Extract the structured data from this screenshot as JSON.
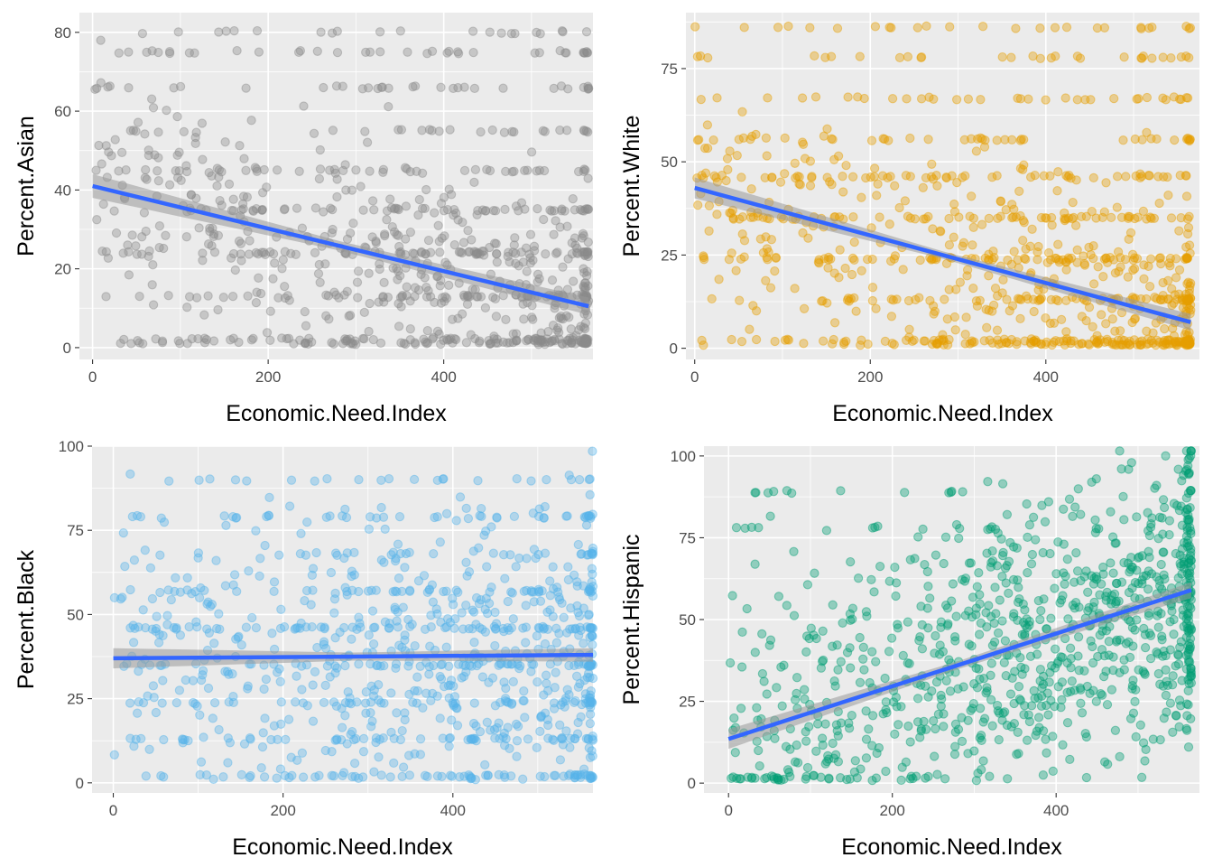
{
  "colors": {
    "panel": "#ebebeb",
    "grid": "#ffffff",
    "fit_line": "#3366ff",
    "band": "#999999"
  },
  "chart_data": [
    {
      "type": "scatter",
      "series_color": "#8c8c8c",
      "xlabel": "Economic.Need.Index",
      "ylabel": "Percent.Asian",
      "xlim": [
        -15,
        570
      ],
      "ylim": [
        -3,
        85
      ],
      "x_ticks": [
        0,
        200,
        400
      ],
      "y_ticks": [
        0,
        20,
        40,
        60,
        80
      ],
      "trend": {
        "x": [
          0,
          565
        ],
        "y": [
          41,
          10.5
        ],
        "band_halfwidth": [
          3.0,
          1.2,
          2.2
        ]
      },
      "point_profile": {
        "count": 900,
        "x_range": [
          0,
          565
        ],
        "x_skew": 0.75,
        "y_levels": [
          80,
          75,
          66,
          55,
          45,
          35,
          24,
          13,
          2,
          1
        ],
        "level_share": 0.5,
        "y_spread": 12
      }
    },
    {
      "type": "scatter",
      "series_color": "#e69f00",
      "xlabel": "Economic.Need.Index",
      "ylabel": "Percent.White",
      "xlim": [
        -10,
        575
      ],
      "ylim": [
        -3,
        90
      ],
      "x_ticks": [
        0,
        200,
        400
      ],
      "y_ticks": [
        0,
        25,
        50,
        75
      ],
      "trend": {
        "x": [
          0,
          565
        ],
        "y": [
          43,
          7
        ],
        "band_halfwidth": [
          2.8,
          1.0,
          2.2
        ]
      },
      "point_profile": {
        "count": 900,
        "x_range": [
          0,
          565
        ],
        "x_skew": 0.7,
        "y_levels": [
          86,
          78,
          67,
          56,
          46,
          35,
          24,
          13,
          2,
          1
        ],
        "level_share": 0.55,
        "y_spread": 12
      }
    },
    {
      "type": "scatter",
      "series_color": "#56b4e9",
      "xlabel": "Economic.Need.Index",
      "ylabel": "Percent.Black",
      "xlim": [
        -25,
        565
      ],
      "ylim": [
        -3,
        100
      ],
      "x_ticks": [
        0,
        200,
        400
      ],
      "y_ticks": [
        0,
        25,
        50,
        75,
        100
      ],
      "trend": {
        "x": [
          0,
          565
        ],
        "y": [
          37,
          38
        ],
        "band_halfwidth": [
          3.0,
          1.2,
          2.0
        ]
      },
      "point_profile": {
        "count": 950,
        "x_range": [
          0,
          565
        ],
        "x_skew": 0.8,
        "y_levels": [
          90,
          79,
          68,
          57,
          46,
          35,
          24,
          13,
          2
        ],
        "level_share": 0.4,
        "y_spread": 18
      }
    },
    {
      "type": "scatter",
      "series_color": "#009e73",
      "xlabel": "Economic.Need.Index",
      "ylabel": "Percent.Hispanic",
      "xlim": [
        -30,
        575
      ],
      "ylim": [
        -3,
        103
      ],
      "x_ticks": [
        0,
        200,
        400
      ],
      "y_ticks": [
        0,
        25,
        50,
        75,
        100
      ],
      "trend": {
        "x": [
          0,
          565
        ],
        "y": [
          13.5,
          59
        ],
        "band_halfwidth": [
          3.0,
          1.2,
          2.4
        ]
      },
      "point_profile": {
        "count": 950,
        "x_range": [
          0,
          565
        ],
        "x_skew": 0.8,
        "y_levels": [
          89,
          78,
          67
        ],
        "level_share": 0.08,
        "y_spread": 18
      }
    }
  ]
}
